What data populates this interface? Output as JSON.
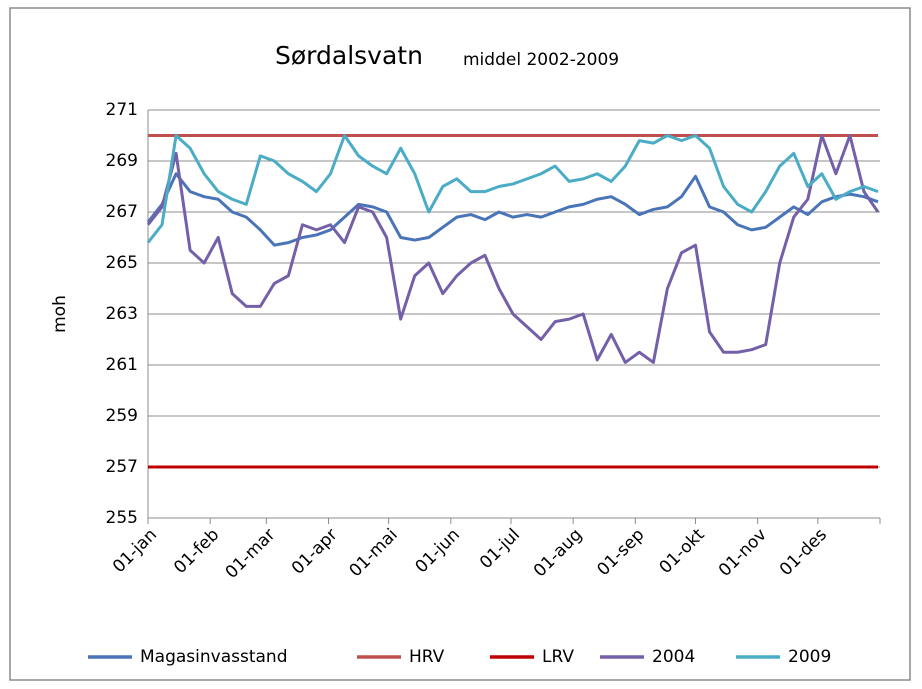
{
  "chart_data": {
    "type": "line",
    "title": "Sørdalsvatn",
    "subtitle": "middel 2002-2009",
    "y_label": "moh",
    "x": [
      0,
      7,
      14,
      21,
      28,
      35,
      42,
      49,
      56,
      63,
      70,
      77,
      84,
      91,
      98,
      105,
      112,
      119,
      126,
      133,
      140,
      147,
      154,
      161,
      168,
      175,
      182,
      189,
      196,
      203,
      210,
      217,
      224,
      231,
      238,
      245,
      252,
      259,
      266,
      273,
      280,
      287,
      294,
      301,
      308,
      315,
      322,
      329,
      336,
      343,
      350,
      357,
      364
    ],
    "xlim": [
      0,
      365
    ],
    "xticks": [
      {
        "value": 0,
        "label": "01-jan"
      },
      {
        "value": 31,
        "label": "01-feb"
      },
      {
        "value": 59,
        "label": "01-mar"
      },
      {
        "value": 90,
        "label": "01-apr"
      },
      {
        "value": 120,
        "label": "01-mai"
      },
      {
        "value": 151,
        "label": "01-jun"
      },
      {
        "value": 181,
        "label": "01-jul"
      },
      {
        "value": 212,
        "label": "01-aug"
      },
      {
        "value": 243,
        "label": "01-sep"
      },
      {
        "value": 273,
        "label": "01-okt"
      },
      {
        "value": 304,
        "label": "01-nov"
      },
      {
        "value": 334,
        "label": "01-des"
      }
    ],
    "ylim": [
      255,
      271
    ],
    "yticks": [
      255,
      257,
      259,
      261,
      263,
      265,
      267,
      269,
      271
    ],
    "grid": true,
    "legend": "bottom",
    "series": [
      {
        "name": "Magasinvasstand",
        "color": "#4a74b8",
        "values": [
          266.6,
          267.3,
          268.5,
          267.8,
          267.6,
          267.5,
          267.0,
          266.8,
          266.3,
          265.7,
          265.8,
          266.0,
          266.1,
          266.3,
          266.8,
          267.3,
          267.2,
          267.0,
          266.0,
          265.9,
          266.0,
          266.4,
          266.8,
          266.9,
          266.7,
          267.0,
          266.8,
          266.9,
          266.8,
          267.0,
          267.2,
          267.3,
          267.5,
          267.6,
          267.3,
          266.9,
          267.1,
          267.2,
          267.6,
          268.4,
          267.2,
          267.0,
          266.5,
          266.3,
          266.4,
          266.8,
          267.2,
          266.9,
          267.4,
          267.6,
          267.7,
          267.6,
          267.4
        ]
      },
      {
        "name": "HRV",
        "color": "#c0504d",
        "values": [
          270,
          270,
          270,
          270,
          270,
          270,
          270,
          270,
          270,
          270,
          270,
          270,
          270,
          270,
          270,
          270,
          270,
          270,
          270,
          270,
          270,
          270,
          270,
          270,
          270,
          270,
          270,
          270,
          270,
          270,
          270,
          270,
          270,
          270,
          270,
          270,
          270,
          270,
          270,
          270,
          270,
          270,
          270,
          270,
          270,
          270,
          270,
          270,
          270,
          270,
          270,
          270,
          270
        ]
      },
      {
        "name": "LRV",
        "color": "#c00000",
        "values": [
          257,
          257,
          257,
          257,
          257,
          257,
          257,
          257,
          257,
          257,
          257,
          257,
          257,
          257,
          257,
          257,
          257,
          257,
          257,
          257,
          257,
          257,
          257,
          257,
          257,
          257,
          257,
          257,
          257,
          257,
          257,
          257,
          257,
          257,
          257,
          257,
          257,
          257,
          257,
          257,
          257,
          257,
          257,
          257,
          257,
          257,
          257,
          257,
          257,
          257,
          257,
          257,
          257
        ]
      },
      {
        "name": "2004",
        "color": "#7460a8",
        "values": [
          266.5,
          267.2,
          269.3,
          265.5,
          265.0,
          266.0,
          263.8,
          263.3,
          263.3,
          264.2,
          264.5,
          266.5,
          266.3,
          266.5,
          265.8,
          267.2,
          267.0,
          266.0,
          262.8,
          264.5,
          265.0,
          263.8,
          264.5,
          265.0,
          265.3,
          264.0,
          263.0,
          262.5,
          262.0,
          262.7,
          262.8,
          263.0,
          261.2,
          262.2,
          261.1,
          261.5,
          261.1,
          264.0,
          265.4,
          265.7,
          262.3,
          261.5,
          261.5,
          261.6,
          261.8,
          265.0,
          266.8,
          267.5,
          270.0,
          268.5,
          270.0,
          267.8,
          267.0
        ]
      },
      {
        "name": "2009",
        "color": "#4bacc6",
        "values": [
          265.8,
          266.5,
          270.0,
          269.5,
          268.5,
          267.8,
          267.5,
          267.3,
          269.2,
          269.0,
          268.5,
          268.2,
          267.8,
          268.5,
          270.0,
          269.2,
          268.8,
          268.5,
          269.5,
          268.5,
          267.0,
          268.0,
          268.3,
          267.8,
          267.8,
          268.0,
          268.1,
          268.3,
          268.5,
          268.8,
          268.2,
          268.3,
          268.5,
          268.2,
          268.8,
          269.8,
          269.7,
          270.0,
          269.8,
          270.0,
          269.5,
          268.0,
          267.3,
          267.0,
          267.8,
          268.8,
          269.3,
          268.0,
          268.5,
          267.5,
          267.8,
          268.0,
          267.8
        ]
      }
    ]
  }
}
